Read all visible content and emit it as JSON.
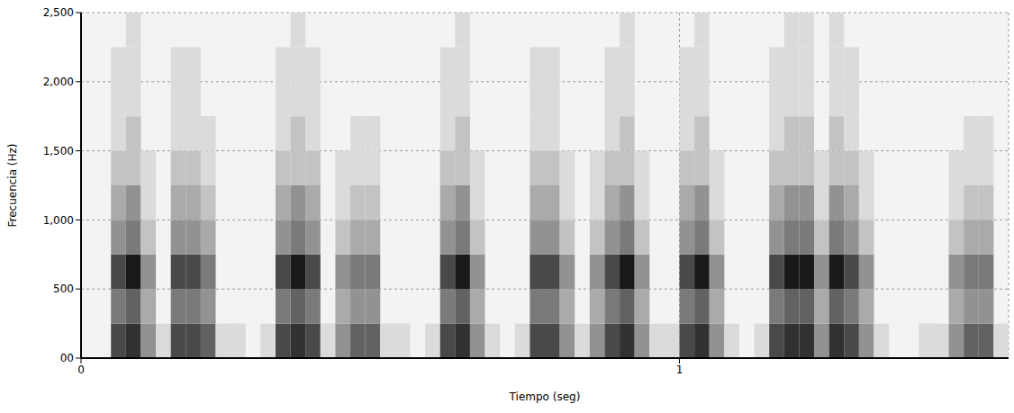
{
  "chart_data": {
    "type": "heatmap",
    "x_label": "Tiempo (seg)",
    "y_label": "Frecuencia (Hz)",
    "xlim": [
      0,
      1.55
    ],
    "xticks": [
      0,
      1
    ],
    "ylim": [
      0,
      2500
    ],
    "yticks": [
      {
        "value": 0,
        "label": "00"
      },
      500,
      {
        "value": 1000,
        "label": "1,000"
      },
      {
        "value": 1500,
        "label": "1,500"
      },
      {
        "value": 2000,
        "label": "2,000"
      },
      {
        "value": 2500,
        "label": "2,500"
      }
    ],
    "grid": true,
    "zlim": [
      0,
      9
    ],
    "x": [
      0,
      0.025,
      0.05,
      0.075,
      0.1,
      0.125,
      0.15,
      0.175,
      0.2,
      0.225,
      0.25,
      0.275,
      0.3,
      0.325,
      0.35,
      0.375,
      0.4,
      0.425,
      0.45,
      0.475,
      0.5,
      0.525,
      0.55,
      0.575,
      0.6,
      0.625,
      0.65,
      0.675,
      0.7,
      0.725,
      0.75,
      0.775,
      0.8,
      0.825,
      0.85,
      0.875,
      0.9,
      0.925,
      0.95,
      0.975,
      1,
      1.025,
      1.05,
      1.075,
      1.1,
      1.125,
      1.15,
      1.175,
      1.2,
      1.225,
      1.25,
      1.275,
      1.3,
      1.325,
      1.35,
      1.375,
      1.4,
      1.425,
      1.45,
      1.475,
      1.5,
      1.525
    ],
    "y": [
      0,
      250,
      500,
      750,
      1000,
      1250,
      1500,
      1750,
      2000,
      2250
    ],
    "cells": [
      [
        0,
        0,
        0,
        0,
        0,
        0,
        0,
        0,
        0,
        0
      ],
      [
        0,
        0,
        0,
        0,
        0,
        0,
        0,
        0,
        0,
        0
      ],
      [
        7,
        5,
        7,
        4,
        3,
        2,
        1,
        1,
        1,
        0
      ],
      [
        8,
        6,
        9,
        5,
        4,
        2,
        2,
        1,
        1,
        1
      ],
      [
        4,
        3,
        4,
        2,
        1,
        1,
        0,
        0,
        0,
        0
      ],
      [
        1,
        0,
        0,
        0,
        0,
        0,
        0,
        0,
        0,
        0
      ],
      [
        7,
        5,
        7,
        4,
        3,
        2,
        1,
        1,
        1,
        0
      ],
      [
        7,
        5,
        7,
        4,
        3,
        2,
        1,
        1,
        1,
        0
      ],
      [
        6,
        4,
        5,
        3,
        2,
        1,
        1,
        0,
        0,
        0
      ],
      [
        1,
        0,
        0,
        0,
        0,
        0,
        0,
        0,
        0,
        0
      ],
      [
        1,
        0,
        0,
        0,
        0,
        0,
        0,
        0,
        0,
        0
      ],
      [
        0,
        0,
        0,
        0,
        0,
        0,
        0,
        0,
        0,
        0
      ],
      [
        1,
        0,
        0,
        0,
        0,
        0,
        0,
        0,
        0,
        0
      ],
      [
        7,
        5,
        7,
        4,
        3,
        2,
        1,
        1,
        1,
        0
      ],
      [
        8,
        6,
        9,
        5,
        4,
        2,
        2,
        1,
        1,
        1
      ],
      [
        7,
        5,
        7,
        4,
        3,
        2,
        1,
        1,
        1,
        0
      ],
      [
        1,
        0,
        0,
        0,
        0,
        0,
        0,
        0,
        0,
        0
      ],
      [
        4,
        3,
        4,
        2,
        1,
        1,
        0,
        0,
        0,
        0
      ],
      [
        6,
        4,
        5,
        3,
        2,
        1,
        1,
        0,
        0,
        0
      ],
      [
        6,
        4,
        5,
        3,
        2,
        1,
        1,
        0,
        0,
        0
      ],
      [
        1,
        0,
        0,
        0,
        0,
        0,
        0,
        0,
        0,
        0
      ],
      [
        1,
        0,
        0,
        0,
        0,
        0,
        0,
        0,
        0,
        0
      ],
      [
        0,
        0,
        0,
        0,
        0,
        0,
        0,
        0,
        0,
        0
      ],
      [
        1,
        0,
        0,
        0,
        0,
        0,
        0,
        0,
        0,
        0
      ],
      [
        7,
        5,
        7,
        4,
        3,
        2,
        1,
        1,
        1,
        0
      ],
      [
        8,
        6,
        9,
        5,
        4,
        2,
        2,
        1,
        1,
        1
      ],
      [
        4,
        3,
        4,
        2,
        1,
        1,
        0,
        0,
        0,
        0
      ],
      [
        1,
        0,
        0,
        0,
        0,
        0,
        0,
        0,
        0,
        0
      ],
      [
        0,
        0,
        0,
        0,
        0,
        0,
        0,
        0,
        0,
        0
      ],
      [
        1,
        0,
        0,
        0,
        0,
        0,
        0,
        0,
        0,
        0
      ],
      [
        7,
        5,
        7,
        4,
        3,
        2,
        1,
        1,
        1,
        0
      ],
      [
        7,
        5,
        7,
        4,
        3,
        2,
        1,
        1,
        1,
        0
      ],
      [
        4,
        3,
        4,
        2,
        1,
        1,
        0,
        0,
        0,
        0
      ],
      [
        1,
        0,
        0,
        0,
        0,
        0,
        0,
        0,
        0,
        0
      ],
      [
        4,
        3,
        4,
        2,
        1,
        1,
        0,
        0,
        0,
        0
      ],
      [
        7,
        5,
        7,
        4,
        3,
        2,
        1,
        1,
        1,
        0
      ],
      [
        8,
        6,
        9,
        5,
        4,
        2,
        2,
        1,
        1,
        1
      ],
      [
        4,
        3,
        4,
        2,
        1,
        1,
        0,
        0,
        0,
        0
      ],
      [
        1,
        0,
        0,
        0,
        0,
        0,
        0,
        0,
        0,
        0
      ],
      [
        1,
        0,
        0,
        0,
        0,
        0,
        0,
        0,
        0,
        0
      ],
      [
        7,
        5,
        7,
        4,
        3,
        2,
        1,
        1,
        1,
        0
      ],
      [
        8,
        6,
        9,
        5,
        4,
        2,
        2,
        1,
        1,
        1
      ],
      [
        4,
        3,
        4,
        2,
        1,
        1,
        0,
        0,
        0,
        0
      ],
      [
        1,
        0,
        0,
        0,
        0,
        0,
        0,
        0,
        0,
        0
      ],
      [
        0,
        0,
        0,
        0,
        0,
        0,
        0,
        0,
        0,
        0
      ],
      [
        1,
        0,
        0,
        0,
        0,
        0,
        0,
        0,
        0,
        0
      ],
      [
        7,
        5,
        7,
        4,
        3,
        2,
        1,
        1,
        1,
        0
      ],
      [
        8,
        6,
        9,
        5,
        4,
        2,
        2,
        1,
        1,
        1
      ],
      [
        8,
        6,
        9,
        5,
        4,
        2,
        2,
        1,
        1,
        1
      ],
      [
        4,
        3,
        4,
        2,
        1,
        1,
        0,
        0,
        0,
        0
      ],
      [
        8,
        6,
        9,
        5,
        4,
        2,
        2,
        1,
        1,
        1
      ],
      [
        7,
        5,
        7,
        4,
        3,
        2,
        1,
        1,
        1,
        0
      ],
      [
        4,
        3,
        4,
        2,
        1,
        1,
        0,
        0,
        0,
        0
      ],
      [
        1,
        0,
        0,
        0,
        0,
        0,
        0,
        0,
        0,
        0
      ],
      [
        0,
        0,
        0,
        0,
        0,
        0,
        0,
        0,
        0,
        0
      ],
      [
        0,
        0,
        0,
        0,
        0,
        0,
        0,
        0,
        0,
        0
      ],
      [
        1,
        0,
        0,
        0,
        0,
        0,
        0,
        0,
        0,
        0
      ],
      [
        1,
        0,
        0,
        0,
        0,
        0,
        0,
        0,
        0,
        0
      ],
      [
        4,
        3,
        4,
        2,
        1,
        1,
        0,
        0,
        0,
        0
      ],
      [
        6,
        4,
        5,
        3,
        2,
        1,
        1,
        0,
        0,
        0
      ],
      [
        6,
        4,
        5,
        3,
        2,
        1,
        1,
        0,
        0,
        0
      ],
      [
        1,
        0,
        0,
        0,
        0,
        0,
        0,
        0,
        0,
        0
      ]
    ]
  }
}
